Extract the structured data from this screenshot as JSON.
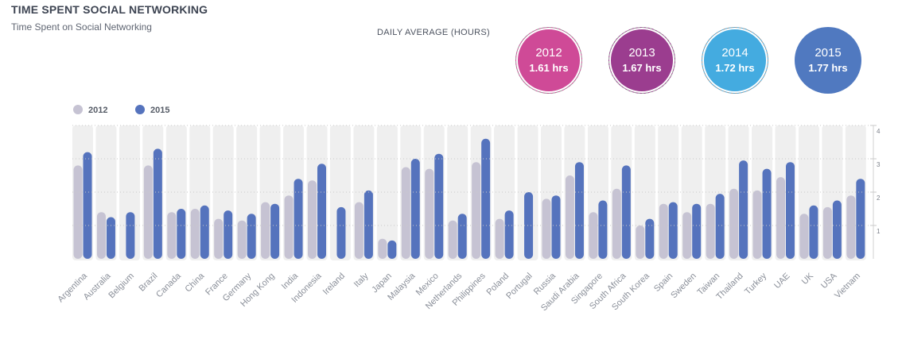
{
  "header": {
    "title": "TIME SPENT SOCIAL NETWORKING",
    "subtitle": "Time Spent on Social Networking"
  },
  "daily_average": {
    "label": "DAILY AVERAGE (HOURS)",
    "items": [
      {
        "year": "2012",
        "value": "1.61 hrs",
        "color": "#cf4a97"
      },
      {
        "year": "2013",
        "value": "1.67 hrs",
        "color": "#9b3d8f"
      },
      {
        "year": "2014",
        "value": "1.72 hrs",
        "color": "#44abe0"
      },
      {
        "year": "2015",
        "value": "1.77 hrs",
        "color": "#5079c0"
      }
    ]
  },
  "chart_data": {
    "type": "bar",
    "title": "Time Spent on Social Networking",
    "xlabel": "",
    "ylabel": "",
    "ylim": [
      0,
      4
    ],
    "yticks": [
      "1",
      "2",
      "3",
      "4"
    ],
    "legend_position": "top-left",
    "colors": {
      "2012": "#c6c3d3",
      "2015": "#5573bd",
      "track": "#efefef"
    },
    "categories": [
      "Argentina",
      "Australia",
      "Belgium",
      "Brazil",
      "Canada",
      "China",
      "France",
      "Germany",
      "Hong Kong",
      "India",
      "Indonesia",
      "Ireland",
      "Italy",
      "Japan",
      "Malaysia",
      "Mexico",
      "Netherlands",
      "Philippines",
      "Poland",
      "Portugal",
      "Russia",
      "Saudi Arabia",
      "Singapore",
      "South Africa",
      "South Korea",
      "Spain",
      "Sweden",
      "Taiwan",
      "Thailand",
      "Turkey",
      "UAE",
      "UK",
      "USA",
      "Vietnam"
    ],
    "series": [
      {
        "name": "2012",
        "values": [
          2.8,
          1.4,
          null,
          2.8,
          1.4,
          1.5,
          1.2,
          1.15,
          1.7,
          1.9,
          2.35,
          null,
          1.7,
          0.6,
          2.75,
          2.7,
          1.15,
          2.9,
          1.2,
          null,
          1.8,
          2.5,
          1.4,
          2.1,
          1.0,
          1.65,
          1.4,
          1.65,
          2.1,
          2.05,
          2.45,
          1.35,
          1.55,
          1.9
        ]
      },
      {
        "name": "2015",
        "values": [
          3.2,
          1.25,
          1.4,
          3.3,
          1.5,
          1.6,
          1.45,
          1.35,
          1.65,
          2.4,
          2.85,
          1.55,
          2.05,
          0.55,
          3.0,
          3.15,
          1.35,
          3.6,
          1.45,
          2.0,
          1.9,
          2.9,
          1.75,
          2.8,
          1.2,
          1.7,
          1.65,
          1.95,
          2.95,
          2.7,
          2.9,
          1.6,
          1.75,
          2.4
        ]
      }
    ]
  }
}
